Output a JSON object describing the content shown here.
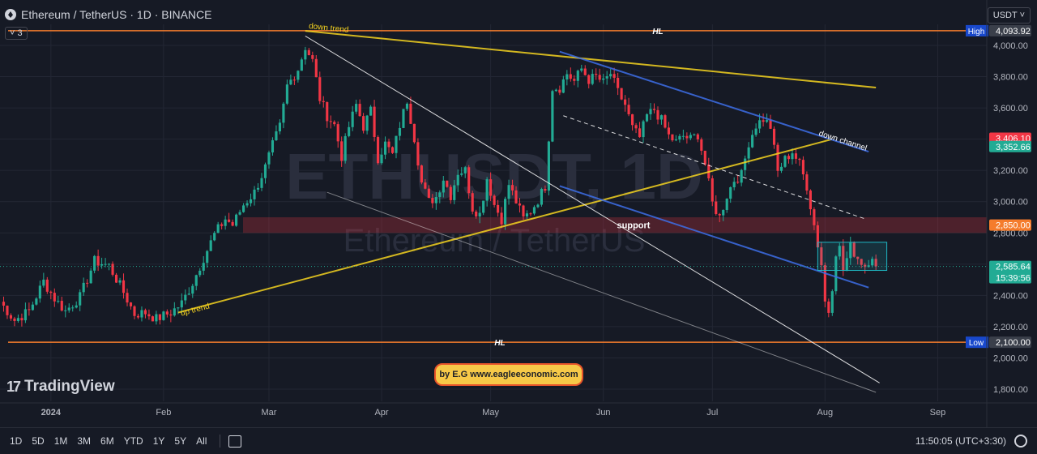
{
  "header": {
    "symbol": "Ethereum / TetherUS · 1D · BINANCE",
    "collapse_label": "3"
  },
  "currency": {
    "label": "USDT ˅"
  },
  "brand": {
    "name": "TradingView"
  },
  "credit": {
    "text": "by E.G www.eagleeconomic.com"
  },
  "watermark": {
    "line1": "ETHUSDT, 1D",
    "line2": "Ethereum / TetherUS"
  },
  "bottom": {
    "ranges": [
      "1D",
      "5D",
      "1M",
      "3M",
      "6M",
      "YTD",
      "1Y",
      "5Y",
      "All"
    ],
    "clock": "11:50:05 (UTC+3:30)"
  },
  "chart_data": {
    "type": "candlestick",
    "title": "Ethereum / TetherUS · 1D · BINANCE",
    "ylim": [
      1700,
      4180
    ],
    "y_ticks": [
      1800,
      2000,
      2200,
      2400,
      2600,
      2800,
      3000,
      3200,
      3400,
      3600,
      3800,
      4000
    ],
    "y_tick_labels": [
      "1,800.00",
      "2,000.00",
      "2,200.00",
      "2,400.00",
      "2,600.00",
      "2,800.00",
      "3,000.00",
      "3,200.00",
      "3,400.00",
      "3,600.00",
      "3,800.00",
      "4,000.00"
    ],
    "x_ticks": [
      {
        "label": "2024",
        "day": 14
      },
      {
        "label": "Feb",
        "day": 45
      },
      {
        "label": "Mar",
        "day": 74
      },
      {
        "label": "Apr",
        "day": 105
      },
      {
        "label": "May",
        "day": 135
      },
      {
        "label": "Jun",
        "day": 166
      },
      {
        "label": "Jul",
        "day": 196
      },
      {
        "label": "Aug",
        "day": 227
      },
      {
        "label": "Sep",
        "day": 258
      }
    ],
    "xlim": [
      0,
      270
    ],
    "keypoints": [
      [
        0,
        2360
      ],
      [
        4,
        2240
      ],
      [
        8,
        2300
      ],
      [
        12,
        2490
      ],
      [
        15,
        2380
      ],
      [
        18,
        2300
      ],
      [
        22,
        2390
      ],
      [
        26,
        2620
      ],
      [
        30,
        2590
      ],
      [
        34,
        2420
      ],
      [
        37,
        2280
      ],
      [
        40,
        2290
      ],
      [
        43,
        2250
      ],
      [
        47,
        2290
      ],
      [
        50,
        2350
      ],
      [
        53,
        2480
      ],
      [
        56,
        2640
      ],
      [
        59,
        2790
      ],
      [
        62,
        2890
      ],
      [
        64,
        2850
      ],
      [
        67,
        2980
      ],
      [
        70,
        3060
      ],
      [
        73,
        3220
      ],
      [
        75,
        3360
      ],
      [
        77,
        3480
      ],
      [
        79,
        3740
      ],
      [
        82,
        3850
      ],
      [
        84,
        3990
      ],
      [
        86,
        3900
      ],
      [
        88,
        3660
      ],
      [
        90,
        3550
      ],
      [
        92,
        3490
      ],
      [
        94,
        3290
      ],
      [
        96,
        3480
      ],
      [
        98,
        3620
      ],
      [
        100,
        3480
      ],
      [
        102,
        3580
      ],
      [
        104,
        3280
      ],
      [
        106,
        3370
      ],
      [
        108,
        3300
      ],
      [
        110,
        3490
      ],
      [
        112,
        3650
      ],
      [
        114,
        3410
      ],
      [
        116,
        3120
      ],
      [
        118,
        3000
      ],
      [
        120,
        3030
      ],
      [
        122,
        3150
      ],
      [
        124,
        3040
      ],
      [
        126,
        3190
      ],
      [
        128,
        3200
      ],
      [
        130,
        2960
      ],
      [
        132,
        2920
      ],
      [
        134,
        3150
      ],
      [
        136,
        2980
      ],
      [
        138,
        2890
      ],
      [
        140,
        3110
      ],
      [
        142,
        3000
      ],
      [
        144,
        2890
      ],
      [
        146,
        2940
      ],
      [
        148,
        3010
      ],
      [
        150,
        3100
      ],
      [
        152,
        3730
      ],
      [
        154,
        3730
      ],
      [
        156,
        3820
      ],
      [
        158,
        3770
      ],
      [
        160,
        3850
      ],
      [
        162,
        3780
      ],
      [
        164,
        3800
      ],
      [
        166,
        3760
      ],
      [
        168,
        3820
      ],
      [
        170,
        3700
      ],
      [
        172,
        3620
      ],
      [
        174,
        3470
      ],
      [
        176,
        3410
      ],
      [
        178,
        3550
      ],
      [
        180,
        3590
      ],
      [
        182,
        3520
      ],
      [
        184,
        3420
      ],
      [
        186,
        3380
      ],
      [
        188,
        3420
      ],
      [
        190,
        3400
      ],
      [
        192,
        3430
      ],
      [
        194,
        3240
      ],
      [
        196,
        2990
      ],
      [
        198,
        2900
      ],
      [
        200,
        3040
      ],
      [
        202,
        3140
      ],
      [
        204,
        3170
      ],
      [
        206,
        3380
      ],
      [
        208,
        3490
      ],
      [
        210,
        3530
      ],
      [
        212,
        3480
      ],
      [
        214,
        3190
      ],
      [
        216,
        3270
      ],
      [
        218,
        3320
      ],
      [
        220,
        3240
      ],
      [
        222,
        3100
      ],
      [
        224,
        2850
      ],
      [
        226,
        2600
      ],
      [
        227,
        2360
      ],
      [
        228,
        2300
      ],
      [
        229,
        2460
      ],
      [
        230,
        2680
      ],
      [
        231,
        2700
      ],
      [
        232,
        2560
      ],
      [
        234,
        2710
      ],
      [
        236,
        2640
      ],
      [
        238,
        2590
      ],
      [
        240,
        2660
      ],
      [
        241,
        2585.64
      ]
    ],
    "levels": [
      {
        "name": "HL",
        "price": 4093.92,
        "tag": "High",
        "color": "#f57c2c"
      },
      {
        "name": "HL",
        "price": 2100.0,
        "tag": "Low",
        "color": "#f57c2c"
      }
    ],
    "support_zone": {
      "label": "support",
      "low": 2800,
      "high": 2900,
      "color": "#f23645"
    },
    "trendlines": [
      {
        "label": "down trend",
        "color": "#f5d320",
        "from": [
          84,
          4093
        ],
        "to": [
          241,
          3730
        ]
      },
      {
        "label": "up trend",
        "color": "#f5d320",
        "from": [
          49,
          2290
        ],
        "to": [
          229,
          3400
        ]
      },
      {
        "label": "down channel",
        "color": "#3d6fe8",
        "from": [
          154,
          3960
        ],
        "to": [
          239,
          3320
        ]
      },
      {
        "label": "",
        "color": "#3d6fe8",
        "from": [
          154,
          3100
        ],
        "to": [
          239,
          2450
        ]
      },
      {
        "label": "",
        "color": "#ffffff",
        "from": [
          84,
          4060
        ],
        "to": [
          242,
          1840
        ]
      },
      {
        "label": "",
        "color": "#ffffff",
        "from": [
          90,
          3060
        ],
        "to": [
          241,
          1780
        ]
      },
      {
        "label": "",
        "color": "#ffffff",
        "dash": true,
        "from": [
          155,
          3550
        ],
        "to": [
          238,
          2890
        ]
      }
    ],
    "box": {
      "from_day": 225,
      "to_day": 244,
      "low": 2560,
      "high": 2740,
      "color": "#1fb8c4"
    },
    "price_tags": [
      {
        "price": 4093.92,
        "text": "4,093.92",
        "color": "#3a3f4a"
      },
      {
        "price": 3406.1,
        "text": "3,406.10",
        "color": "#f23645"
      },
      {
        "price": 3352.66,
        "text": "3,352.66",
        "color": "#22ab94"
      },
      {
        "price": 2850.0,
        "text": "2,850.00",
        "color": "#f57c2c"
      },
      {
        "price": 2585.64,
        "text": "2,585.64",
        "color": "#22ab94"
      },
      {
        "price": 2100.0,
        "text": "2,100.00",
        "color": "#3a3f4a"
      }
    ],
    "countdown": "15:39:56",
    "colors": {
      "up": "#22ab94",
      "down": "#f23645",
      "background": "#161a25",
      "grid": "#232734"
    }
  }
}
